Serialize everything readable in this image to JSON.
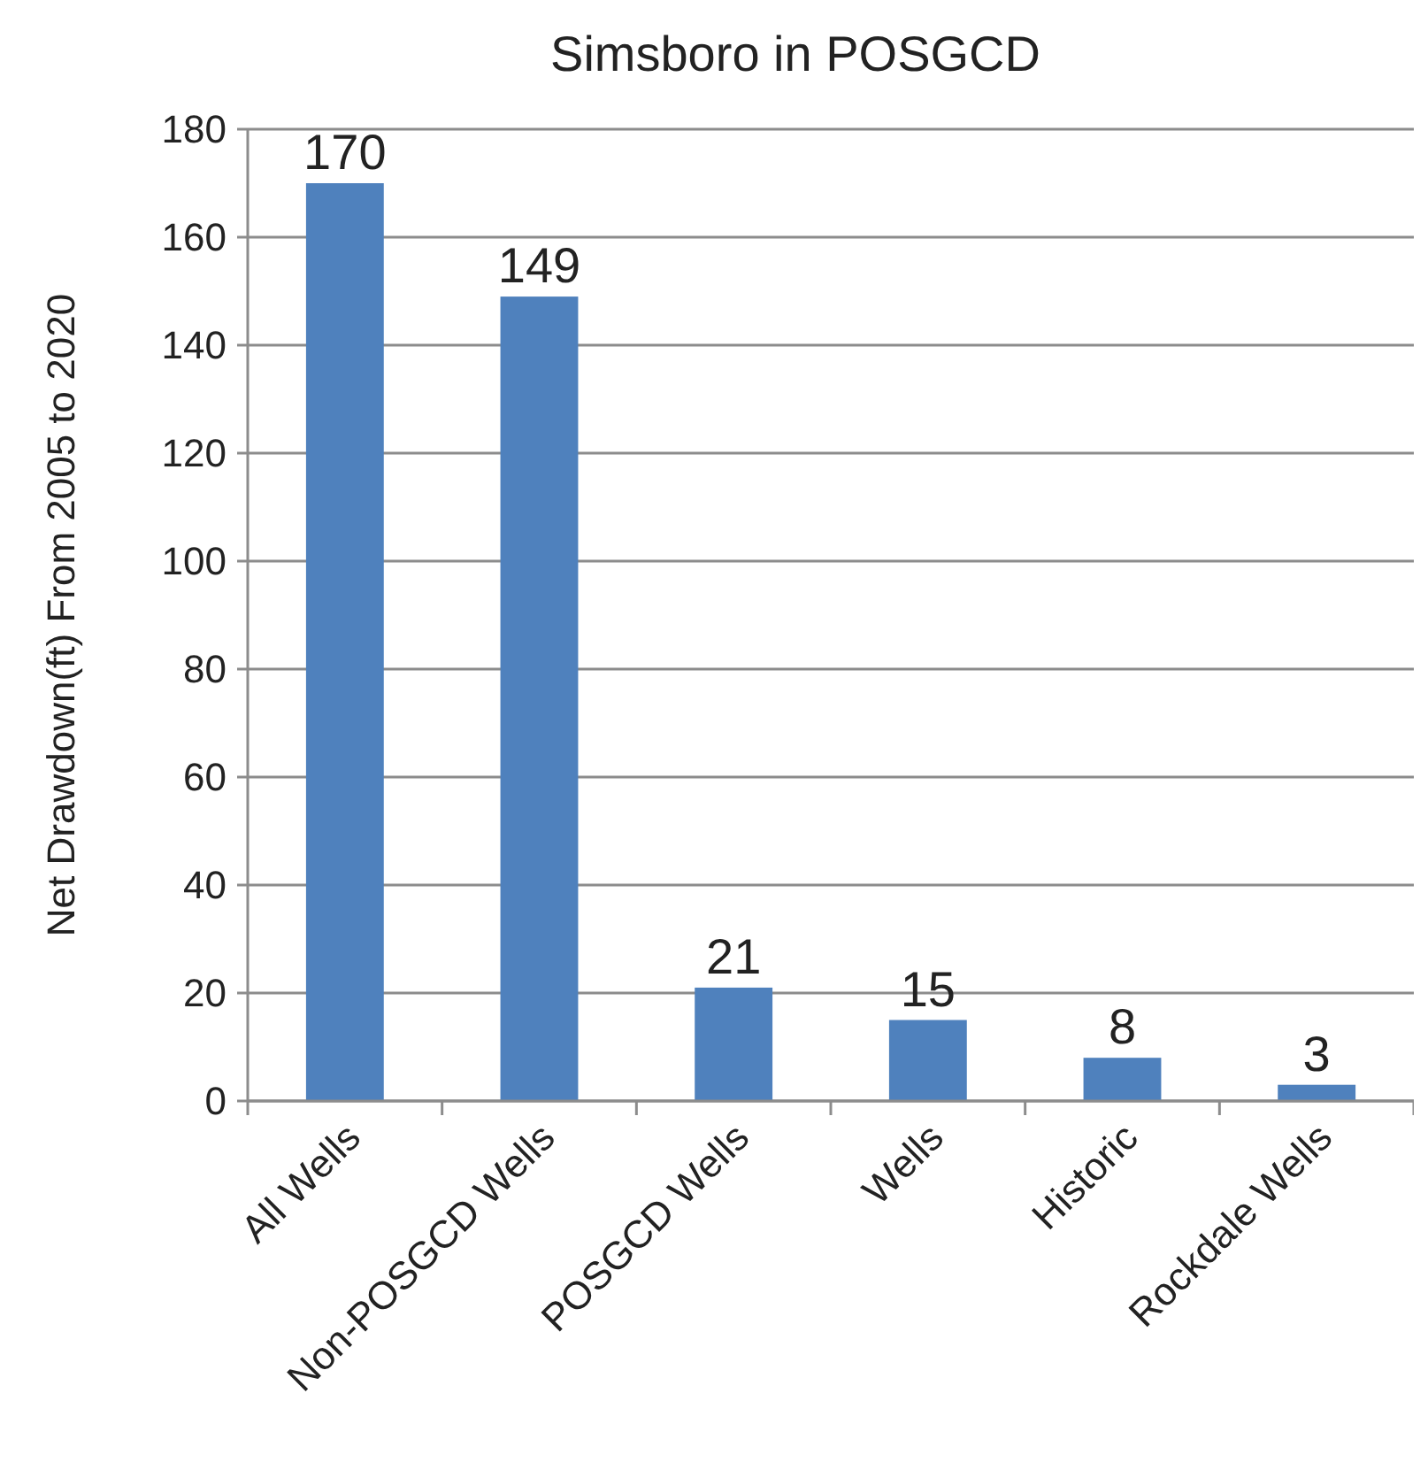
{
  "chart_data": {
    "type": "bar",
    "title": "Simsboro in POSGCD",
    "ylabel": "Net Drawdown(ft) From 2005 to 2020",
    "categories": [
      "All Wells",
      "Non-POSGCD Wells",
      "POSGCD Wells",
      "Wells",
      "Historic",
      "Rockdale Wells"
    ],
    "values": [
      170,
      149,
      21,
      15,
      8,
      3
    ],
    "color": "#4f81bd",
    "ylim": [
      0,
      180
    ],
    "yticks": [
      0,
      20,
      40,
      60,
      80,
      100,
      120,
      140,
      160,
      180
    ],
    "grid": "y",
    "data_labels": true
  }
}
